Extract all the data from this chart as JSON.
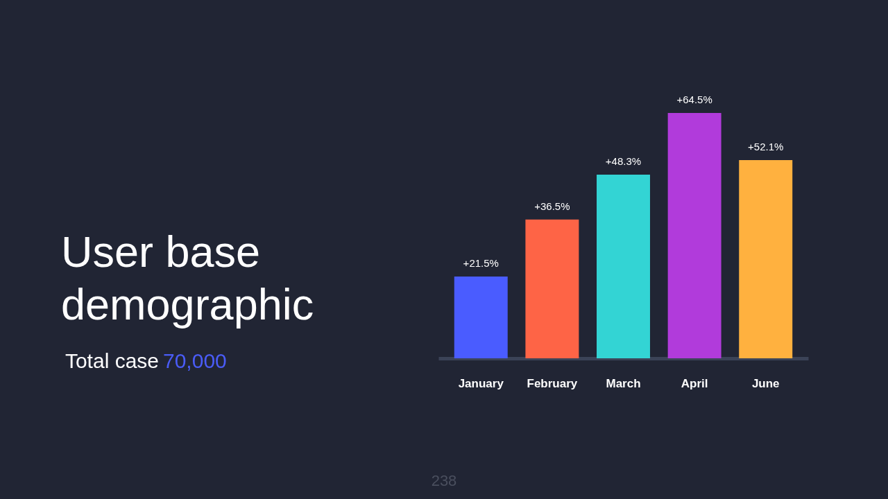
{
  "chart_data": {
    "type": "bar",
    "title": "User base\ndemographic",
    "subtitle": "Total case 70,000",
    "categories": [
      "January",
      "February",
      "March",
      "April",
      "June"
    ],
    "values": [
      21.5,
      36.5,
      48.3,
      64.5,
      52.1
    ],
    "colors": [
      "#4a5cff",
      "#fe6446",
      "#33d4d4",
      "#b13bdb",
      "#ffb13f"
    ],
    "value_labels": [
      "+21.5%",
      "+36.5%",
      "+48.3%",
      "+64.5%",
      "+52.1%"
    ],
    "annotations": [
      "238"
    ],
    "grid": false
  }
}
